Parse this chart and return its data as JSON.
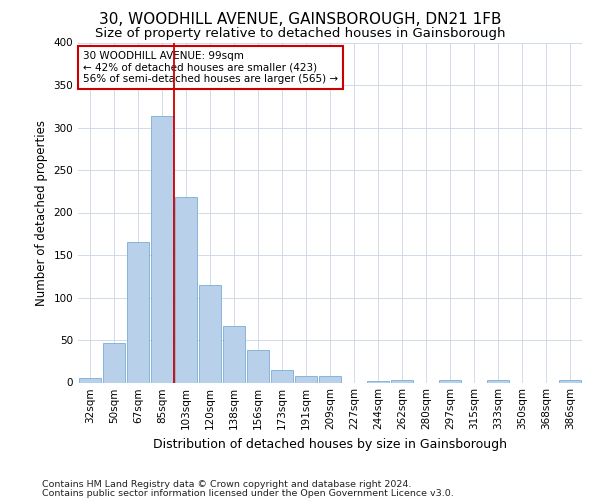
{
  "title": "30, WOODHILL AVENUE, GAINSBOROUGH, DN21 1FB",
  "subtitle": "Size of property relative to detached houses in Gainsborough",
  "xlabel": "Distribution of detached houses by size in Gainsborough",
  "ylabel": "Number of detached properties",
  "bar_color": "#b8d0ea",
  "bar_edge_color": "#7aadd4",
  "background_color": "#ffffff",
  "grid_color": "#c8d4e8",
  "categories": [
    "32sqm",
    "50sqm",
    "67sqm",
    "85sqm",
    "103sqm",
    "120sqm",
    "138sqm",
    "156sqm",
    "173sqm",
    "191sqm",
    "209sqm",
    "227sqm",
    "244sqm",
    "262sqm",
    "280sqm",
    "297sqm",
    "315sqm",
    "333sqm",
    "350sqm",
    "368sqm",
    "386sqm"
  ],
  "values": [
    5,
    47,
    165,
    313,
    218,
    115,
    66,
    38,
    15,
    8,
    8,
    0,
    2,
    3,
    0,
    3,
    0,
    3,
    0,
    0,
    3
  ],
  "vline_bin_index": 4,
  "vline_color": "#cc0000",
  "annotation_text": "30 WOODHILL AVENUE: 99sqm\n← 42% of detached houses are smaller (423)\n56% of semi-detached houses are larger (565) →",
  "annotation_box_color": "#ffffff",
  "annotation_box_edge_color": "#cc0000",
  "footnote1": "Contains HM Land Registry data © Crown copyright and database right 2024.",
  "footnote2": "Contains public sector information licensed under the Open Government Licence v3.0.",
  "ylim": [
    0,
    400
  ],
  "yticks": [
    0,
    50,
    100,
    150,
    200,
    250,
    300,
    350,
    400
  ],
  "title_fontsize": 11,
  "subtitle_fontsize": 9.5,
  "xlabel_fontsize": 9,
  "ylabel_fontsize": 8.5,
  "tick_fontsize": 7.5,
  "annotation_fontsize": 7.5,
  "footnote_fontsize": 6.8
}
